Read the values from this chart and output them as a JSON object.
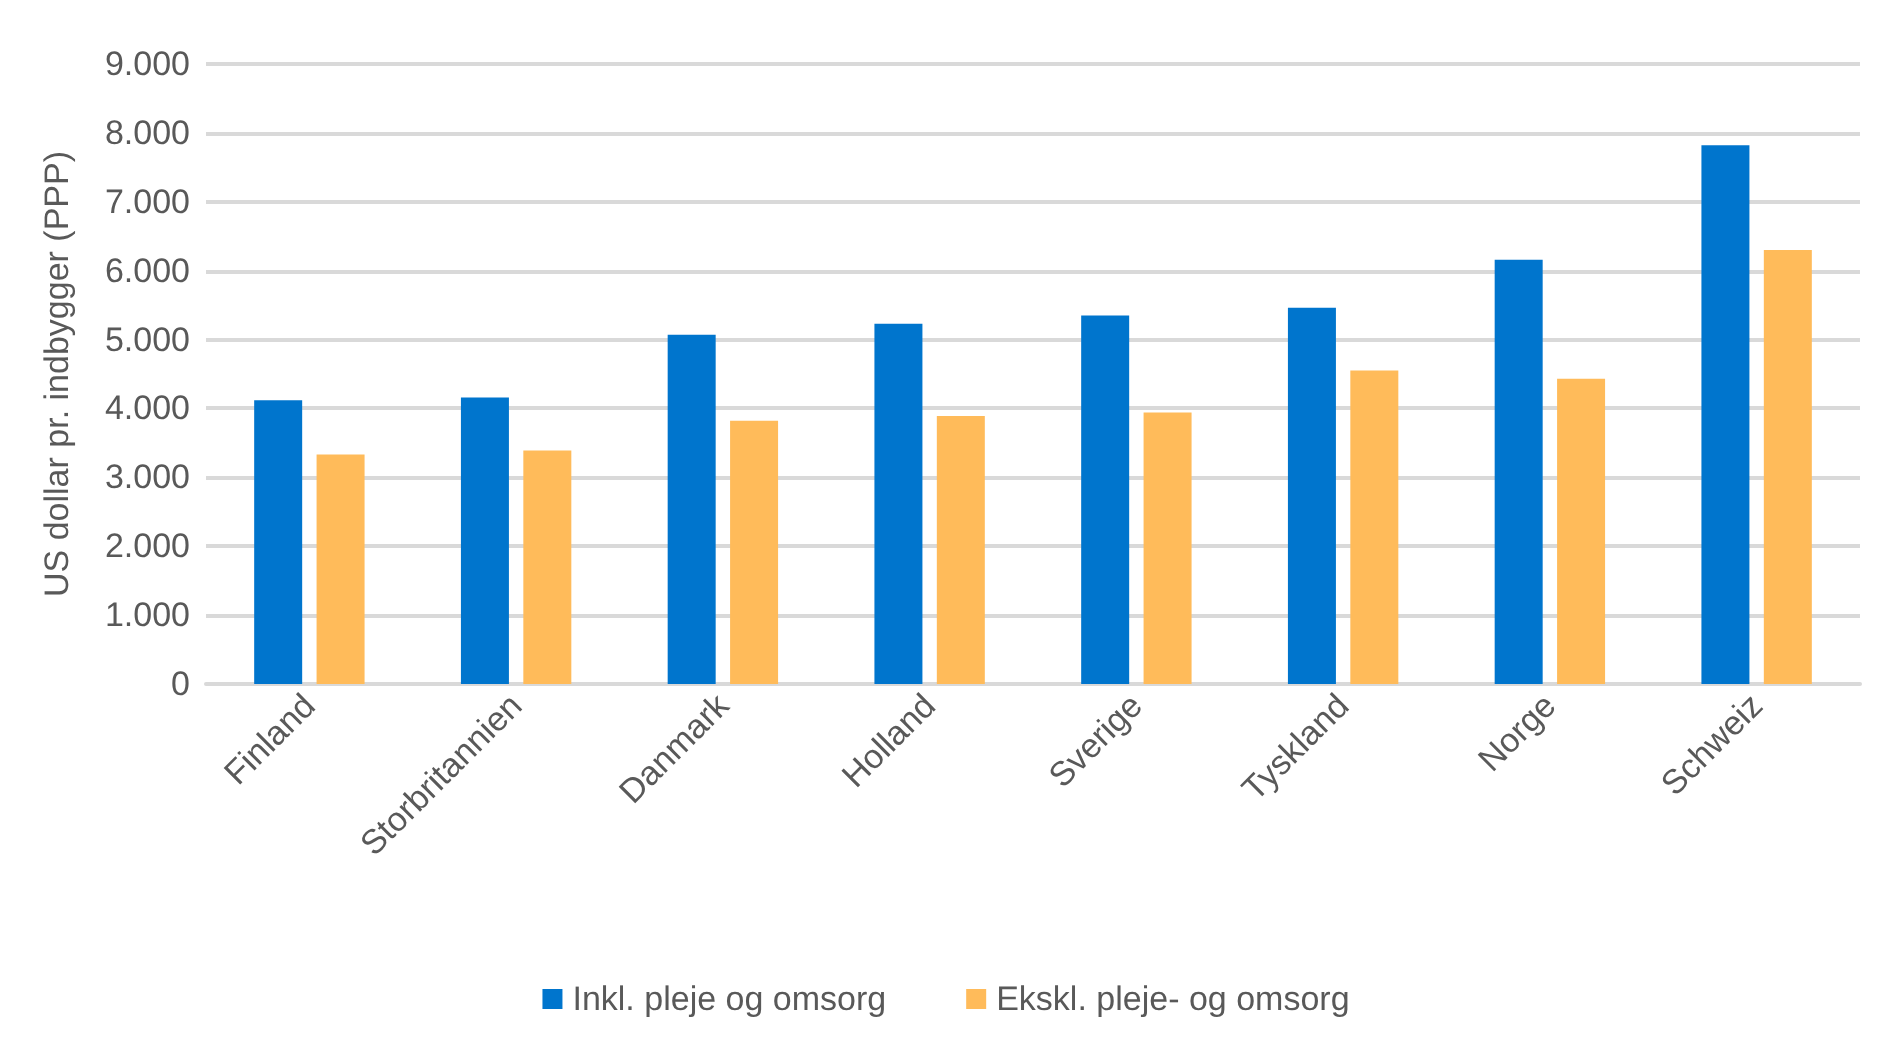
{
  "chart_data": {
    "type": "bar",
    "ylabel": "US dollar pr. indbygger (PPP)",
    "categories": [
      "Finland",
      "Storbritannien",
      "Danmark",
      "Holland",
      "Sverige",
      "Tyskland",
      "Norge",
      "Schweiz"
    ],
    "series": [
      {
        "name": "Inkl. pleje og omsorg",
        "color": "#0075cd",
        "values": [
          4120,
          4160,
          5070,
          5230,
          5350,
          5460,
          6160,
          7820
        ]
      },
      {
        "name": "Ekskl. pleje- og omsorg",
        "color": "#ffbb5a",
        "values": [
          3330,
          3390,
          3820,
          3890,
          3940,
          4550,
          4430,
          6300
        ]
      }
    ],
    "ylim": [
      0,
      9000
    ],
    "yticks": [
      0,
      {
        "value": 1000,
        "label": "1.000"
      },
      {
        "value": 2000,
        "label": "2.000"
      },
      {
        "value": 3000,
        "label": "3.000"
      },
      {
        "value": 4000,
        "label": "4.000"
      },
      {
        "value": 5000,
        "label": "5.000"
      },
      {
        "value": 6000,
        "label": "6.000"
      },
      {
        "value": 7000,
        "label": "7.000"
      },
      {
        "value": 8000,
        "label": "8.000"
      },
      {
        "value": 9000,
        "label": "9.000"
      }
    ],
    "grid": "y",
    "legend": "bottom"
  }
}
